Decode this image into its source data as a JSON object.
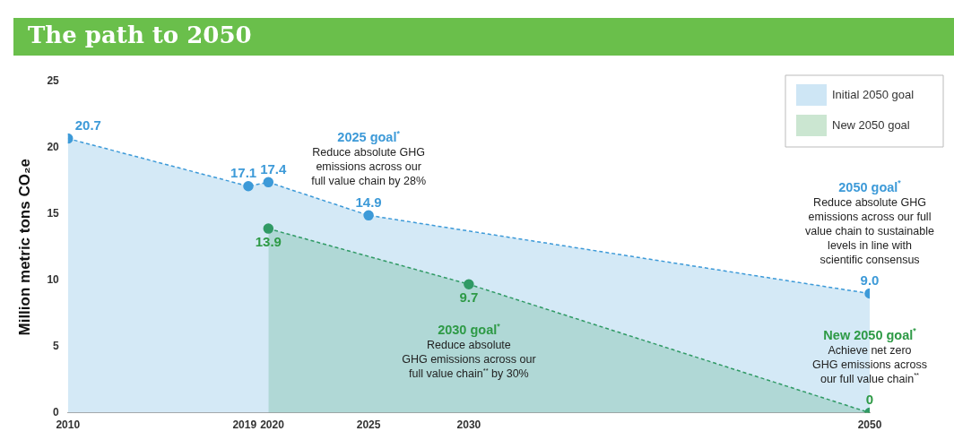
{
  "chart_data": {
    "type": "area",
    "title": "The path to 2050",
    "ylabel": "Million metric tons CO₂e",
    "xlim": [
      2010,
      2050
    ],
    "xticks": [
      2010,
      2019,
      2020,
      2025,
      2030,
      2050
    ],
    "ylim": [
      0,
      25
    ],
    "yticks": [
      0,
      5,
      10,
      15,
      20,
      25
    ],
    "grid": false,
    "legend": "top right",
    "marker": "circle",
    "line_style": "dashed",
    "series": [
      {
        "name": "Initial 2050 goal",
        "color": "#3d9ad8",
        "x": [
          2010,
          2019,
          2020,
          2025,
          2050
        ],
        "values": [
          20.7,
          17.1,
          17.4,
          14.9,
          9.0
        ],
        "value_labels": [
          "20.7",
          "17.1",
          "17.4",
          "14.9",
          "9.0"
        ]
      },
      {
        "name": "New 2050 goal",
        "color": "#2e9a46",
        "x": [
          2020,
          2030,
          2050
        ],
        "values": [
          13.9,
          9.7,
          0
        ],
        "value_labels": [
          "13.9",
          "9.7",
          "0"
        ]
      }
    ],
    "annotations": [
      {
        "text": "2025 goal$^{*}$\nReduce absolute GHG\nemissions across our\nfull value chain by 28%",
        "x": 2025,
        "y": 14.9
      },
      {
        "text": "2030 goal$^{*}$\nReduce absolute\nGHG emissions across our\nfull value chain$^{**}$ by 30%",
        "x": 2030,
        "y": 9.7
      },
      {
        "text": "2050 goal$^{*}$\nReduce absolute GHG\nemissions across our full\nvalue chain to sustainable\nlevels in line with\nscientific consensus",
        "x": 2050,
        "y": 9.0
      },
      {
        "text": "New 2050 goal$^{*}$\nAchieve net zero\nGHG emissions across\nour full value chain$^{**}$",
        "x": 2050,
        "y": 0
      }
    ]
  }
}
